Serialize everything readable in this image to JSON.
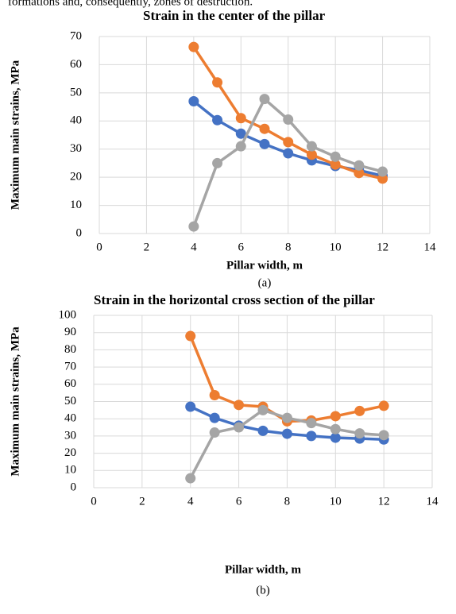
{
  "header_text": "formations and, consequently, zones of destruction.",
  "chart_data": [
    {
      "type": "line",
      "title": "Strain in the center of the pillar",
      "xlabel": "Pillar width, m",
      "ylabel": "Maximum main strains, MPa",
      "caption": "(a)",
      "x": [
        4,
        5,
        6,
        7,
        8,
        9,
        10,
        11,
        12
      ],
      "xlim": [
        0,
        14
      ],
      "xticks": [
        0,
        2,
        4,
        6,
        8,
        10,
        12,
        14
      ],
      "ylim": [
        0,
        70
      ],
      "yticks": [
        0,
        10,
        20,
        30,
        40,
        50,
        60,
        70
      ],
      "grid": true,
      "series": [
        {
          "color": "#4472c4",
          "values": [
            47,
            40.3,
            35.5,
            31.8,
            28.5,
            26,
            24,
            22.5,
            20.5
          ]
        },
        {
          "color": "#ed7d31",
          "values": [
            66.3,
            53.7,
            41,
            37.2,
            32.5,
            28,
            24.5,
            21.5,
            19.5
          ]
        },
        {
          "color": "#a5a5a5",
          "values": [
            2.5,
            25,
            31,
            47.8,
            40.5,
            31,
            27.3,
            24.2,
            22
          ]
        }
      ]
    },
    {
      "type": "line",
      "title": "Strain in the horizontal cross section of the pillar",
      "xlabel": "Pillar width, m",
      "ylabel": "Maximum main strains, MPa",
      "caption": "(b)",
      "x": [
        4,
        5,
        6,
        7,
        8,
        9,
        10,
        11,
        12
      ],
      "xlim": [
        0,
        14
      ],
      "xticks": [
        0,
        2,
        4,
        6,
        8,
        10,
        12,
        14
      ],
      "ylim": [
        0,
        100
      ],
      "yticks": [
        0,
        10,
        20,
        30,
        40,
        50,
        60,
        70,
        80,
        90,
        100
      ],
      "grid": true,
      "series": [
        {
          "color": "#4472c4",
          "values": [
            47,
            40.5,
            36,
            33,
            31.3,
            30,
            29,
            28.5,
            28
          ]
        },
        {
          "color": "#ed7d31",
          "values": [
            88,
            53.7,
            48,
            47,
            38.5,
            39,
            41.5,
            44.5,
            47.5
          ]
        },
        {
          "color": "#a5a5a5",
          "values": [
            5.5,
            32,
            35,
            45,
            40.5,
            37.5,
            34,
            31.5,
            30.5
          ]
        }
      ]
    }
  ]
}
